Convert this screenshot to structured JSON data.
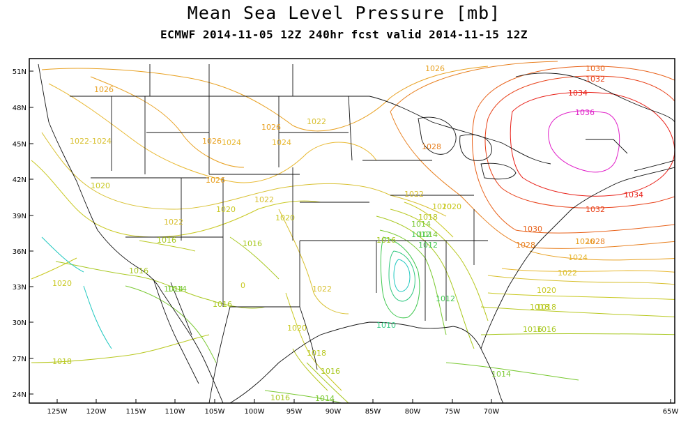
{
  "title": "Mean Sea Level Pressure [mb]",
  "subtitle": "ECMWF 2014-11-05 12Z 240hr fcst valid 2014-11-15 12Z",
  "lat_ticks": [
    "51N",
    "48N",
    "45N",
    "42N",
    "39N",
    "36N",
    "33N",
    "30N",
    "27N",
    "24N"
  ],
  "lon_ticks": [
    "125W",
    "120W",
    "115W",
    "110W",
    "105W",
    "100W",
    "95W",
    "90W",
    "85W",
    "80W",
    "75W",
    "70W",
    "65W"
  ],
  "contour_labels": [
    {
      "t": "1026",
      "c": "#e8a020"
    },
    {
      "t": "1026",
      "c": "#e8a020"
    },
    {
      "t": "1026",
      "c": "#e8a020"
    },
    {
      "t": "1026",
      "c": "#e8a020"
    },
    {
      "t": "1026",
      "c": "#e8a020"
    },
    {
      "t": "1024",
      "c": "#e8b830"
    },
    {
      "t": "1024",
      "c": "#e8b830"
    },
    {
      "t": "1022-1024",
      "c": "#d8c030"
    },
    {
      "t": "1022",
      "c": "#d8c030"
    },
    {
      "t": "1022",
      "c": "#d8c030"
    },
    {
      "t": "1022",
      "c": "#d8c030"
    },
    {
      "t": "1022",
      "c": "#d8c030"
    },
    {
      "t": "1022",
      "c": "#d8c030"
    },
    {
      "t": "1020",
      "c": "#c8c820"
    },
    {
      "t": "1020",
      "c": "#c8c820"
    },
    {
      "t": "1020",
      "c": "#c8c820"
    },
    {
      "t": "1020",
      "c": "#c8c820"
    },
    {
      "t": "1020",
      "c": "#c8c820"
    },
    {
      "t": "1020",
      "c": "#c8c820"
    },
    {
      "t": "1020",
      "c": "#c8c820"
    },
    {
      "t": "1018",
      "c": "#b8c820"
    },
    {
      "t": "1018",
      "c": "#b8c820"
    },
    {
      "t": "1018",
      "c": "#b8c820"
    },
    {
      "t": "1018",
      "c": "#b8c820"
    },
    {
      "t": "1016",
      "c": "#a8c820"
    },
    {
      "t": "1016",
      "c": "#a8c820"
    },
    {
      "t": "1016",
      "c": "#a8c820"
    },
    {
      "t": "1016",
      "c": "#a8c820"
    },
    {
      "t": "1016",
      "c": "#a8c820"
    },
    {
      "t": "1016",
      "c": "#a8c820"
    },
    {
      "t": "1016",
      "c": "#a8c820"
    },
    {
      "t": "1016",
      "c": "#a8c820"
    },
    {
      "t": "1014",
      "c": "#78c830"
    },
    {
      "t": "1014",
      "c": "#78c830"
    },
    {
      "t": "1014",
      "c": "#78c830"
    },
    {
      "t": "1014",
      "c": "#78c830"
    },
    {
      "t": "1014",
      "c": "#78c830"
    },
    {
      "t": "1012",
      "c": "#40c850"
    },
    {
      "t": "1010",
      "c": "#30c880"
    },
    {
      "t": "1028",
      "c": "#e88020"
    },
    {
      "t": "1028",
      "c": "#e88020"
    },
    {
      "t": "1028",
      "c": "#e88020"
    },
    {
      "t": "1030",
      "c": "#e86018"
    },
    {
      "t": "1030",
      "c": "#e86018"
    },
    {
      "t": "1032",
      "c": "#e84018"
    },
    {
      "t": "1032",
      "c": "#e84018"
    },
    {
      "t": "1034",
      "c": "#e82018"
    },
    {
      "t": "1034",
      "c": "#e82018"
    },
    {
      "t": "1036",
      "c": "#e020c8"
    },
    {
      "t": "1026",
      "c": "#e8a020"
    },
    {
      "t": "1024",
      "c": "#e8b830"
    },
    {
      "t": "1022",
      "c": "#d8c030"
    },
    {
      "t": "1020",
      "c": "#c8c820"
    },
    {
      "t": "1018",
      "c": "#b8c820"
    },
    {
      "t": "1016",
      "c": "#a8c820"
    },
    {
      "t": "1014",
      "c": "#78c830"
    },
    {
      "t": "1012",
      "c": "#40c850"
    },
    {
      "t": "1012",
      "c": "#40c850"
    },
    {
      "t": "0",
      "c": "#c8c820"
    }
  ]
}
